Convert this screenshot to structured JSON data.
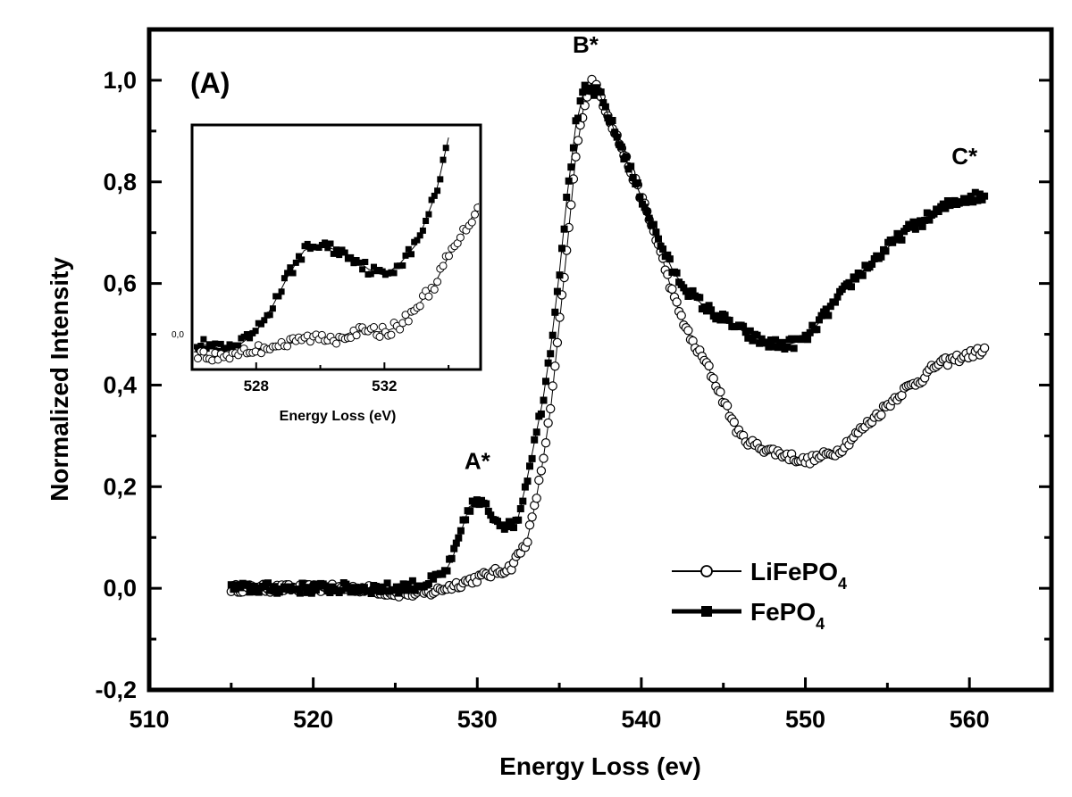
{
  "chart_data": {
    "type": "scatter",
    "panel_label": "(A)",
    "xlabel": "Energy Loss (ev)",
    "ylabel": "Normalized Intensity",
    "xlim": [
      510,
      565
    ],
    "ylim": [
      -0.2,
      1.1
    ],
    "xticks": [
      510,
      520,
      530,
      540,
      550,
      560
    ],
    "yticks": [
      -0.2,
      0.0,
      0.2,
      0.4,
      0.6,
      0.8,
      1.0
    ],
    "ytick_labels": [
      "-0,2",
      "0,0",
      "0,2",
      "0,4",
      "0,6",
      "0,8",
      "1,0"
    ],
    "grid": false,
    "legend": {
      "placement": "lower-right",
      "entries": [
        {
          "base": "LiFePO",
          "sub": "4",
          "marker": "open-circle"
        },
        {
          "base": "FePO",
          "sub": "4",
          "marker": "filled-square"
        }
      ]
    },
    "annotations": [
      {
        "text": "A*",
        "x": 530.0,
        "y": 0.21
      },
      {
        "text": "B*",
        "x": 536.6,
        "y": 1.03
      },
      {
        "text": "C*",
        "x": 559.7,
        "y": 0.81
      }
    ],
    "series": [
      {
        "name": "LiFePO4",
        "marker": "open-circle",
        "x": [
          515,
          517,
          519,
          521,
          523,
          525,
          527,
          528,
          529,
          530,
          531,
          532,
          533,
          533.5,
          534,
          534.5,
          535,
          535.5,
          536,
          536.5,
          537,
          537.5,
          538,
          539,
          540,
          541,
          542,
          543,
          544,
          545,
          546,
          547,
          548,
          549,
          550,
          551,
          552,
          553,
          554,
          555,
          556,
          557,
          558,
          559,
          560,
          561
        ],
        "values": [
          0.0,
          0.0,
          0.0,
          0.0,
          0.0,
          -0.01,
          -0.01,
          0.0,
          0.01,
          0.02,
          0.03,
          0.04,
          0.09,
          0.16,
          0.25,
          0.36,
          0.52,
          0.68,
          0.85,
          0.95,
          1.0,
          0.97,
          0.93,
          0.85,
          0.77,
          0.68,
          0.57,
          0.49,
          0.44,
          0.37,
          0.3,
          0.28,
          0.27,
          0.26,
          0.25,
          0.26,
          0.27,
          0.3,
          0.33,
          0.36,
          0.39,
          0.41,
          0.44,
          0.45,
          0.46,
          0.47
        ]
      },
      {
        "name": "FePO4",
        "marker": "filled-square",
        "x": [
          515,
          517,
          519,
          521,
          523,
          525,
          527,
          528,
          528.5,
          529,
          529.5,
          530,
          530.5,
          531,
          531.5,
          532,
          532.5,
          533,
          533.5,
          534,
          534.5,
          535,
          535.5,
          536,
          536.5,
          537,
          537.5,
          538,
          539,
          540,
          541,
          542,
          543,
          544,
          545,
          546,
          547,
          548,
          549,
          550,
          551,
          552,
          553,
          554,
          555,
          556,
          557,
          558,
          559,
          560,
          561
        ],
        "values": [
          0.0,
          0.0,
          0.0,
          0.0,
          0.0,
          0.0,
          0.01,
          0.03,
          0.06,
          0.11,
          0.16,
          0.17,
          0.16,
          0.14,
          0.13,
          0.12,
          0.14,
          0.21,
          0.29,
          0.37,
          0.48,
          0.62,
          0.78,
          0.91,
          0.98,
          0.98,
          0.97,
          0.93,
          0.85,
          0.77,
          0.69,
          0.62,
          0.58,
          0.55,
          0.53,
          0.51,
          0.49,
          0.48,
          0.48,
          0.49,
          0.53,
          0.57,
          0.61,
          0.64,
          0.67,
          0.7,
          0.72,
          0.74,
          0.76,
          0.77,
          0.77
        ]
      }
    ],
    "inset": {
      "xlabel": "Energy Loss (eV)",
      "xlim": [
        526,
        535
      ],
      "xticks": [
        528,
        532
      ],
      "ytick_label": "0,0",
      "series": [
        {
          "name": "FePO4",
          "marker": "filled-square",
          "x": [
            526,
            526.5,
            527,
            527.5,
            528,
            528.5,
            529,
            529.5,
            530,
            530.5,
            531,
            531.5,
            532,
            532.5,
            533,
            533.3,
            533.6,
            534
          ],
          "values": [
            0.01,
            0.01,
            0.0,
            0.01,
            0.03,
            0.07,
            0.12,
            0.16,
            0.17,
            0.16,
            0.15,
            0.13,
            0.12,
            0.14,
            0.17,
            0.21,
            0.25,
            0.34
          ]
        },
        {
          "name": "LiFePO4",
          "marker": "open-circle",
          "x": [
            526,
            526.5,
            527,
            527.5,
            528,
            528.5,
            529,
            529.5,
            530,
            530.5,
            531,
            531.5,
            532,
            532.5,
            533,
            533.5,
            534,
            534.5,
            535
          ],
          "values": [
            0.0,
            -0.01,
            -0.01,
            0.0,
            0.0,
            0.01,
            0.01,
            0.02,
            0.02,
            0.02,
            0.03,
            0.03,
            0.03,
            0.04,
            0.07,
            0.1,
            0.15,
            0.19,
            0.24
          ]
        }
      ]
    }
  }
}
